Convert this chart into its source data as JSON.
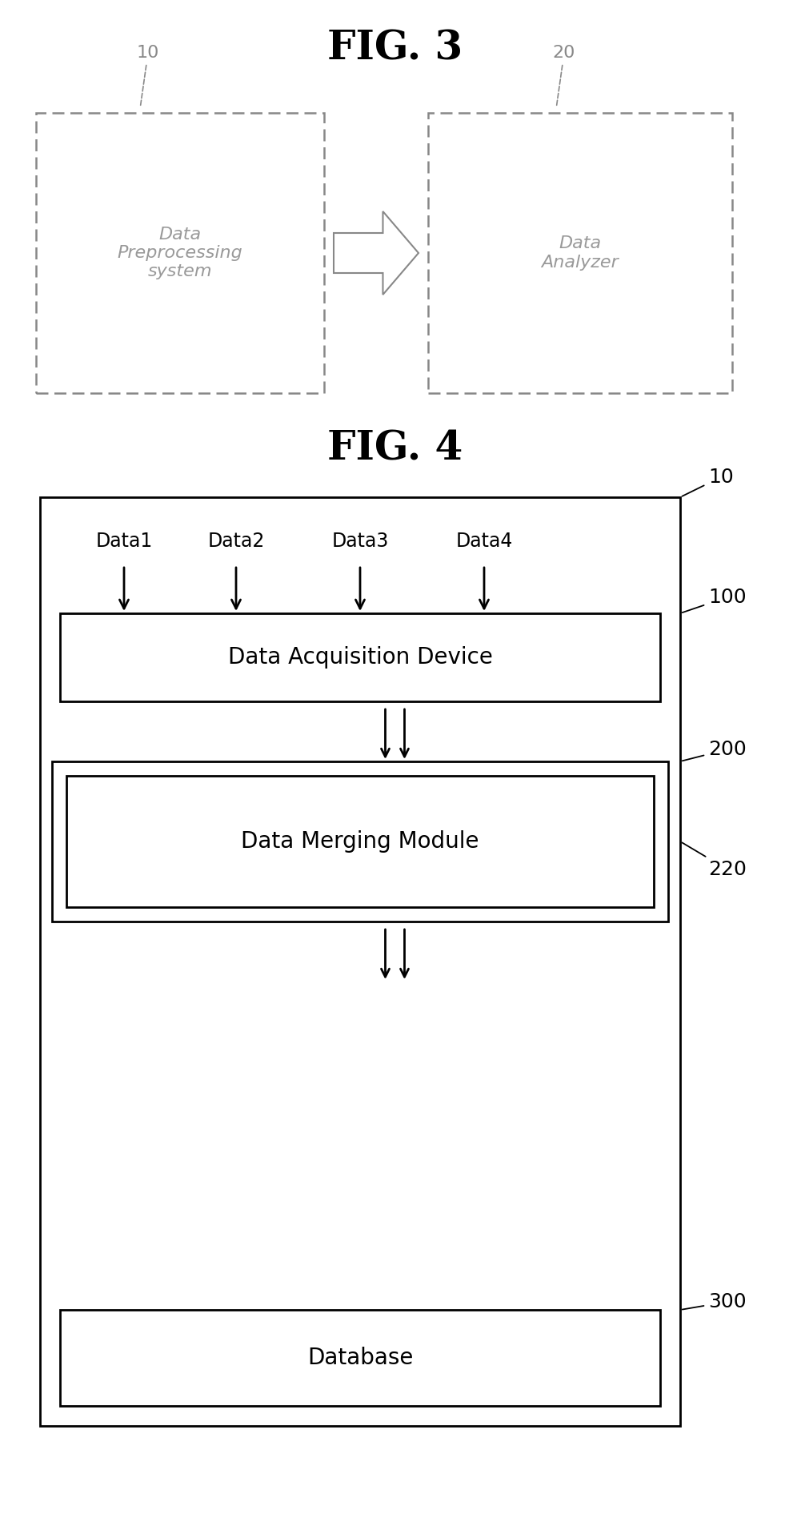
{
  "fig_title": "FIG. 3",
  "fig4_title": "FIG. 4",
  "bg_color": "#ffffff",
  "text_color": "#000000",
  "fig3": {
    "box1_label": "Data\nPreprocessing\nsystem",
    "box1_ref": "10",
    "box2_label": "Data\nAnalyzer",
    "box2_ref": "20",
    "box_edge_color": "#888888",
    "box_text_color": "#999999",
    "ref_color": "#888888"
  },
  "fig4": {
    "outer_ref": "10",
    "box1_label": "Data Acquisition Device",
    "box1_ref": "100",
    "box2_outer_ref": "200",
    "box2_inner_label": "Data Merging Module",
    "box2_inner_ref": "220",
    "box3_label": "Database",
    "box3_ref": "300",
    "data_labels": [
      "Data1",
      "Data2",
      "Data3",
      "Data4"
    ],
    "edge_color": "#000000",
    "text_color": "#000000"
  }
}
